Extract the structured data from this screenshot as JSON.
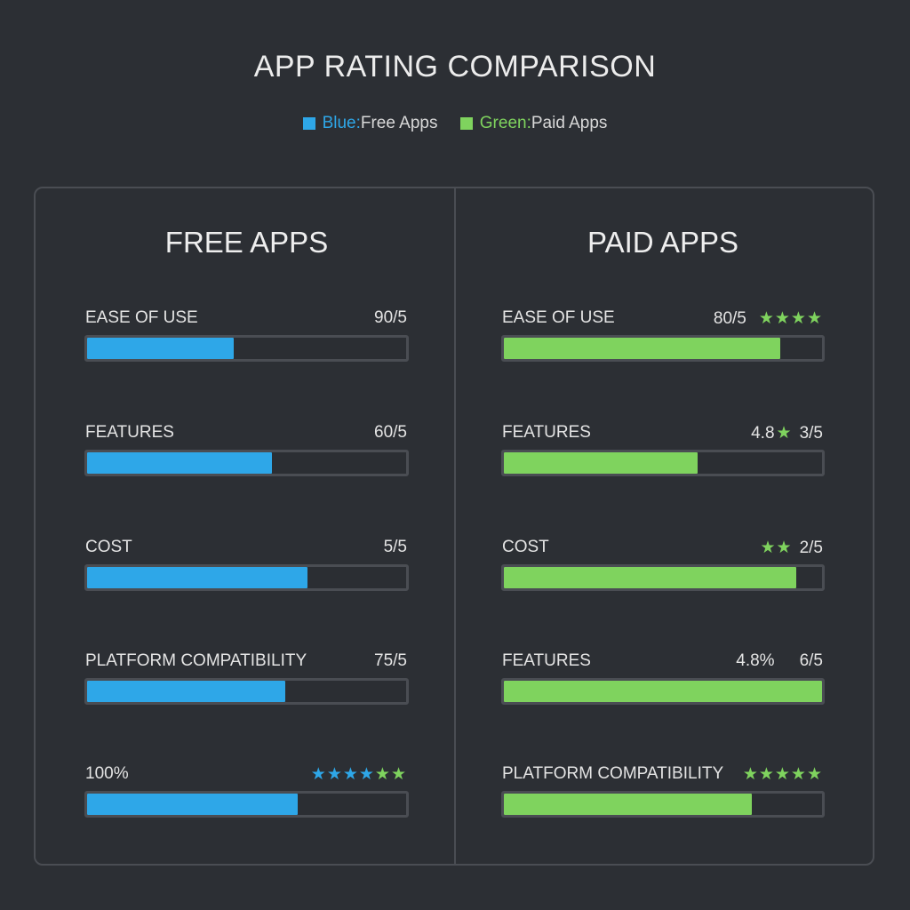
{
  "title": "APP RATING COMPARISON",
  "legend": [
    {
      "color_word": "Blue:",
      "text": " Free Apps",
      "color": "#2ea7e8"
    },
    {
      "color_word": "Green:",
      "text": " Paid Apps",
      "color": "#7fd35e"
    }
  ],
  "colors": {
    "free": "#2ea7e8",
    "paid": "#7fd35e",
    "star_blue": "#2ea7e8",
    "star_green": "#7fd35e"
  },
  "chart_data": [
    {
      "type": "bar",
      "title": "FREE APPS",
      "orientation": "horizontal",
      "series_color": "#2ea7e8",
      "rows": [
        {
          "label": "EASE OF USE",
          "right_text": "90/5",
          "value": 0.46
        },
        {
          "label": "FEATURES",
          "right_text": "60/5",
          "value": 0.58
        },
        {
          "label": "COST",
          "right_text": "5/5",
          "value": 0.69
        },
        {
          "label": "PLATFORM COMPATIBILITY",
          "right_text": "75/5",
          "value": 0.62
        },
        {
          "label": "100%",
          "right_text": "",
          "stars_blue": "★★★★",
          "stars_green": "★★",
          "value": 0.66
        }
      ]
    },
    {
      "type": "bar",
      "title": "PAID APPS",
      "orientation": "horizontal",
      "series_color": "#7fd35e",
      "rows": [
        {
          "label": "EASE OF USE",
          "right_text": "80/5",
          "stars_green": "★★★★",
          "value": 0.87
        },
        {
          "label": "FEATURES",
          "right_text": "4.8",
          "stars_green": "★",
          "right_text_2": "3/5",
          "value": 0.61
        },
        {
          "label": "COST",
          "right_text": "",
          "stars_green": "★★",
          "right_text_2": "2/5",
          "value": 0.92
        },
        {
          "label": "FEATURES",
          "right_text": "4.8%",
          "right_text_2": "6/5",
          "value": 1.0
        },
        {
          "label": "PLATFORM COMPATIBILITY",
          "right_text": "",
          "stars_green": "★★★★★",
          "value": 0.78
        }
      ]
    }
  ]
}
